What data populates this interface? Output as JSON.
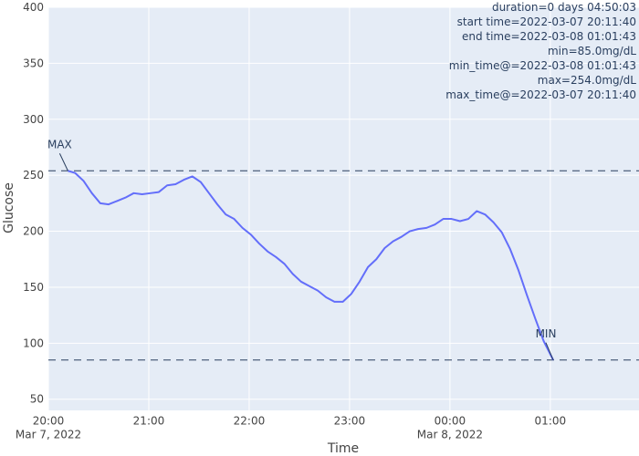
{
  "chart_data": {
    "type": "line",
    "xlabel": "Time",
    "ylabel": "Glucose",
    "ylim": [
      40,
      400
    ],
    "xlim": [
      "2022-03-07 20:00",
      "2022-03-08 01:53"
    ],
    "grid": true,
    "yticks": [
      50,
      100,
      150,
      200,
      250,
      300,
      350,
      400
    ],
    "xticks": [
      {
        "t": "2022-03-07 20:00",
        "label": "20:00",
        "sub": "Mar 7, 2022"
      },
      {
        "t": "2022-03-07 21:00",
        "label": "21:00",
        "sub": ""
      },
      {
        "t": "2022-03-07 22:00",
        "label": "22:00",
        "sub": ""
      },
      {
        "t": "2022-03-07 23:00",
        "label": "23:00",
        "sub": ""
      },
      {
        "t": "2022-03-08 00:00",
        "label": "00:00",
        "sub": "Mar 8, 2022"
      },
      {
        "t": "2022-03-08 01:00",
        "label": "01:00",
        "sub": ""
      }
    ],
    "series": [
      {
        "color": "#636efa",
        "x": [
          "2022-03-07 20:11:40",
          "2022-03-07 20:16",
          "2022-03-07 20:21",
          "2022-03-07 20:26",
          "2022-03-07 20:31",
          "2022-03-07 20:36",
          "2022-03-07 20:41",
          "2022-03-07 20:46",
          "2022-03-07 20:51",
          "2022-03-07 20:56",
          "2022-03-07 21:01",
          "2022-03-07 21:06",
          "2022-03-07 21:11",
          "2022-03-07 21:16",
          "2022-03-07 21:21",
          "2022-03-07 21:26",
          "2022-03-07 21:31",
          "2022-03-07 21:36",
          "2022-03-07 21:41",
          "2022-03-07 21:46",
          "2022-03-07 21:51",
          "2022-03-07 21:56",
          "2022-03-07 22:01",
          "2022-03-07 22:06",
          "2022-03-07 22:11",
          "2022-03-07 22:16",
          "2022-03-07 22:21",
          "2022-03-07 22:26",
          "2022-03-07 22:31",
          "2022-03-07 22:36",
          "2022-03-07 22:41",
          "2022-03-07 22:46",
          "2022-03-07 22:51",
          "2022-03-07 22:56",
          "2022-03-07 23:01",
          "2022-03-07 23:06",
          "2022-03-07 23:11",
          "2022-03-07 23:16",
          "2022-03-07 23:21",
          "2022-03-07 23:26",
          "2022-03-07 23:31",
          "2022-03-07 23:36",
          "2022-03-07 23:41",
          "2022-03-07 23:46",
          "2022-03-07 23:51",
          "2022-03-07 23:56",
          "2022-03-08 00:01",
          "2022-03-08 00:06",
          "2022-03-08 00:11",
          "2022-03-08 00:16",
          "2022-03-08 00:21",
          "2022-03-08 00:26",
          "2022-03-08 00:31",
          "2022-03-08 00:36",
          "2022-03-08 00:41",
          "2022-03-08 00:46",
          "2022-03-08 00:51",
          "2022-03-08 00:56",
          "2022-03-08 01:01:43"
        ],
        "y": [
          254,
          252,
          245,
          234,
          225,
          224,
          227,
          230,
          234,
          233,
          234,
          235,
          241,
          242,
          246,
          249,
          244,
          234,
          224,
          215,
          211,
          203,
          197,
          189,
          182,
          177,
          171,
          162,
          155,
          151,
          147,
          141,
          137,
          137,
          144,
          155,
          168,
          175,
          185,
          191,
          195,
          200,
          202,
          203,
          206,
          211,
          211,
          209,
          211,
          218,
          215,
          208,
          199,
          184,
          165,
          143,
          122,
          102,
          85
        ]
      }
    ],
    "hlines": [
      254.0,
      85.0
    ],
    "annotations": [
      {
        "text": "MAX",
        "x": "2022-03-07 20:11:40",
        "y": 254.0
      },
      {
        "text": "MIN",
        "x": "2022-03-08 01:01:43",
        "y": 85.0
      }
    ],
    "info_lines": [
      "duration=0 days 04:50:03",
      "start time=2022-03-07 20:11:40",
      "end time=2022-03-08 01:01:43",
      "min=85.0mg/dL",
      "min_time@=2022-03-08 01:01:43",
      "max=254.0mg/dL",
      "max_time@=2022-03-07 20:11:40"
    ]
  }
}
